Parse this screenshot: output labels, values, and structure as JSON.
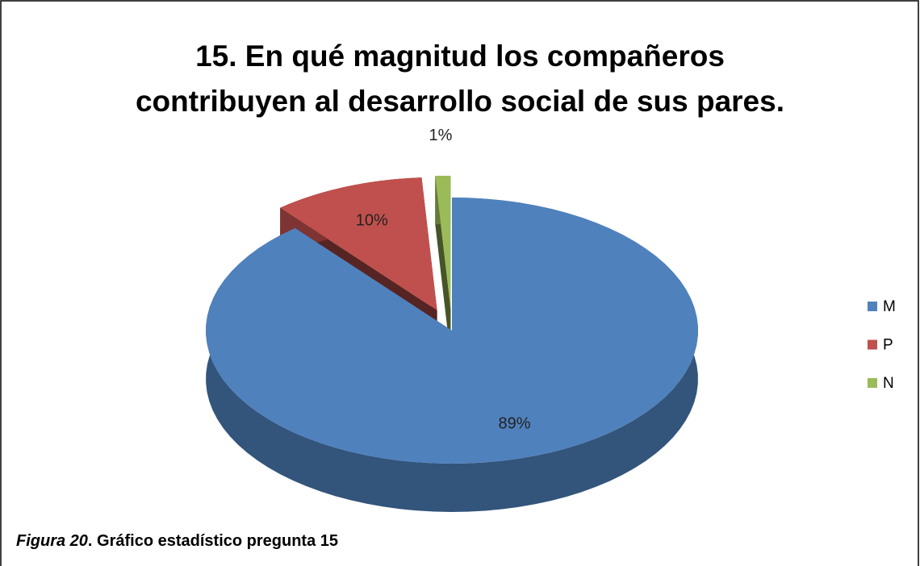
{
  "chart_data": {
    "type": "pie3d",
    "title": [
      "15. En qué magnitud los compañeros",
      "contribuyen al desarrollo social de sus pares."
    ],
    "categories": [
      "M",
      "P",
      "N"
    ],
    "values": [
      89,
      10,
      1
    ],
    "value_labels": [
      "89%",
      "10%",
      "1%"
    ],
    "colors": [
      "#4f81bd",
      "#c0504d",
      "#9bbb59"
    ],
    "legend": "right"
  },
  "caption": {
    "figure": "Figura 20",
    "text": ". Gráfico estadístico pregunta 15"
  }
}
